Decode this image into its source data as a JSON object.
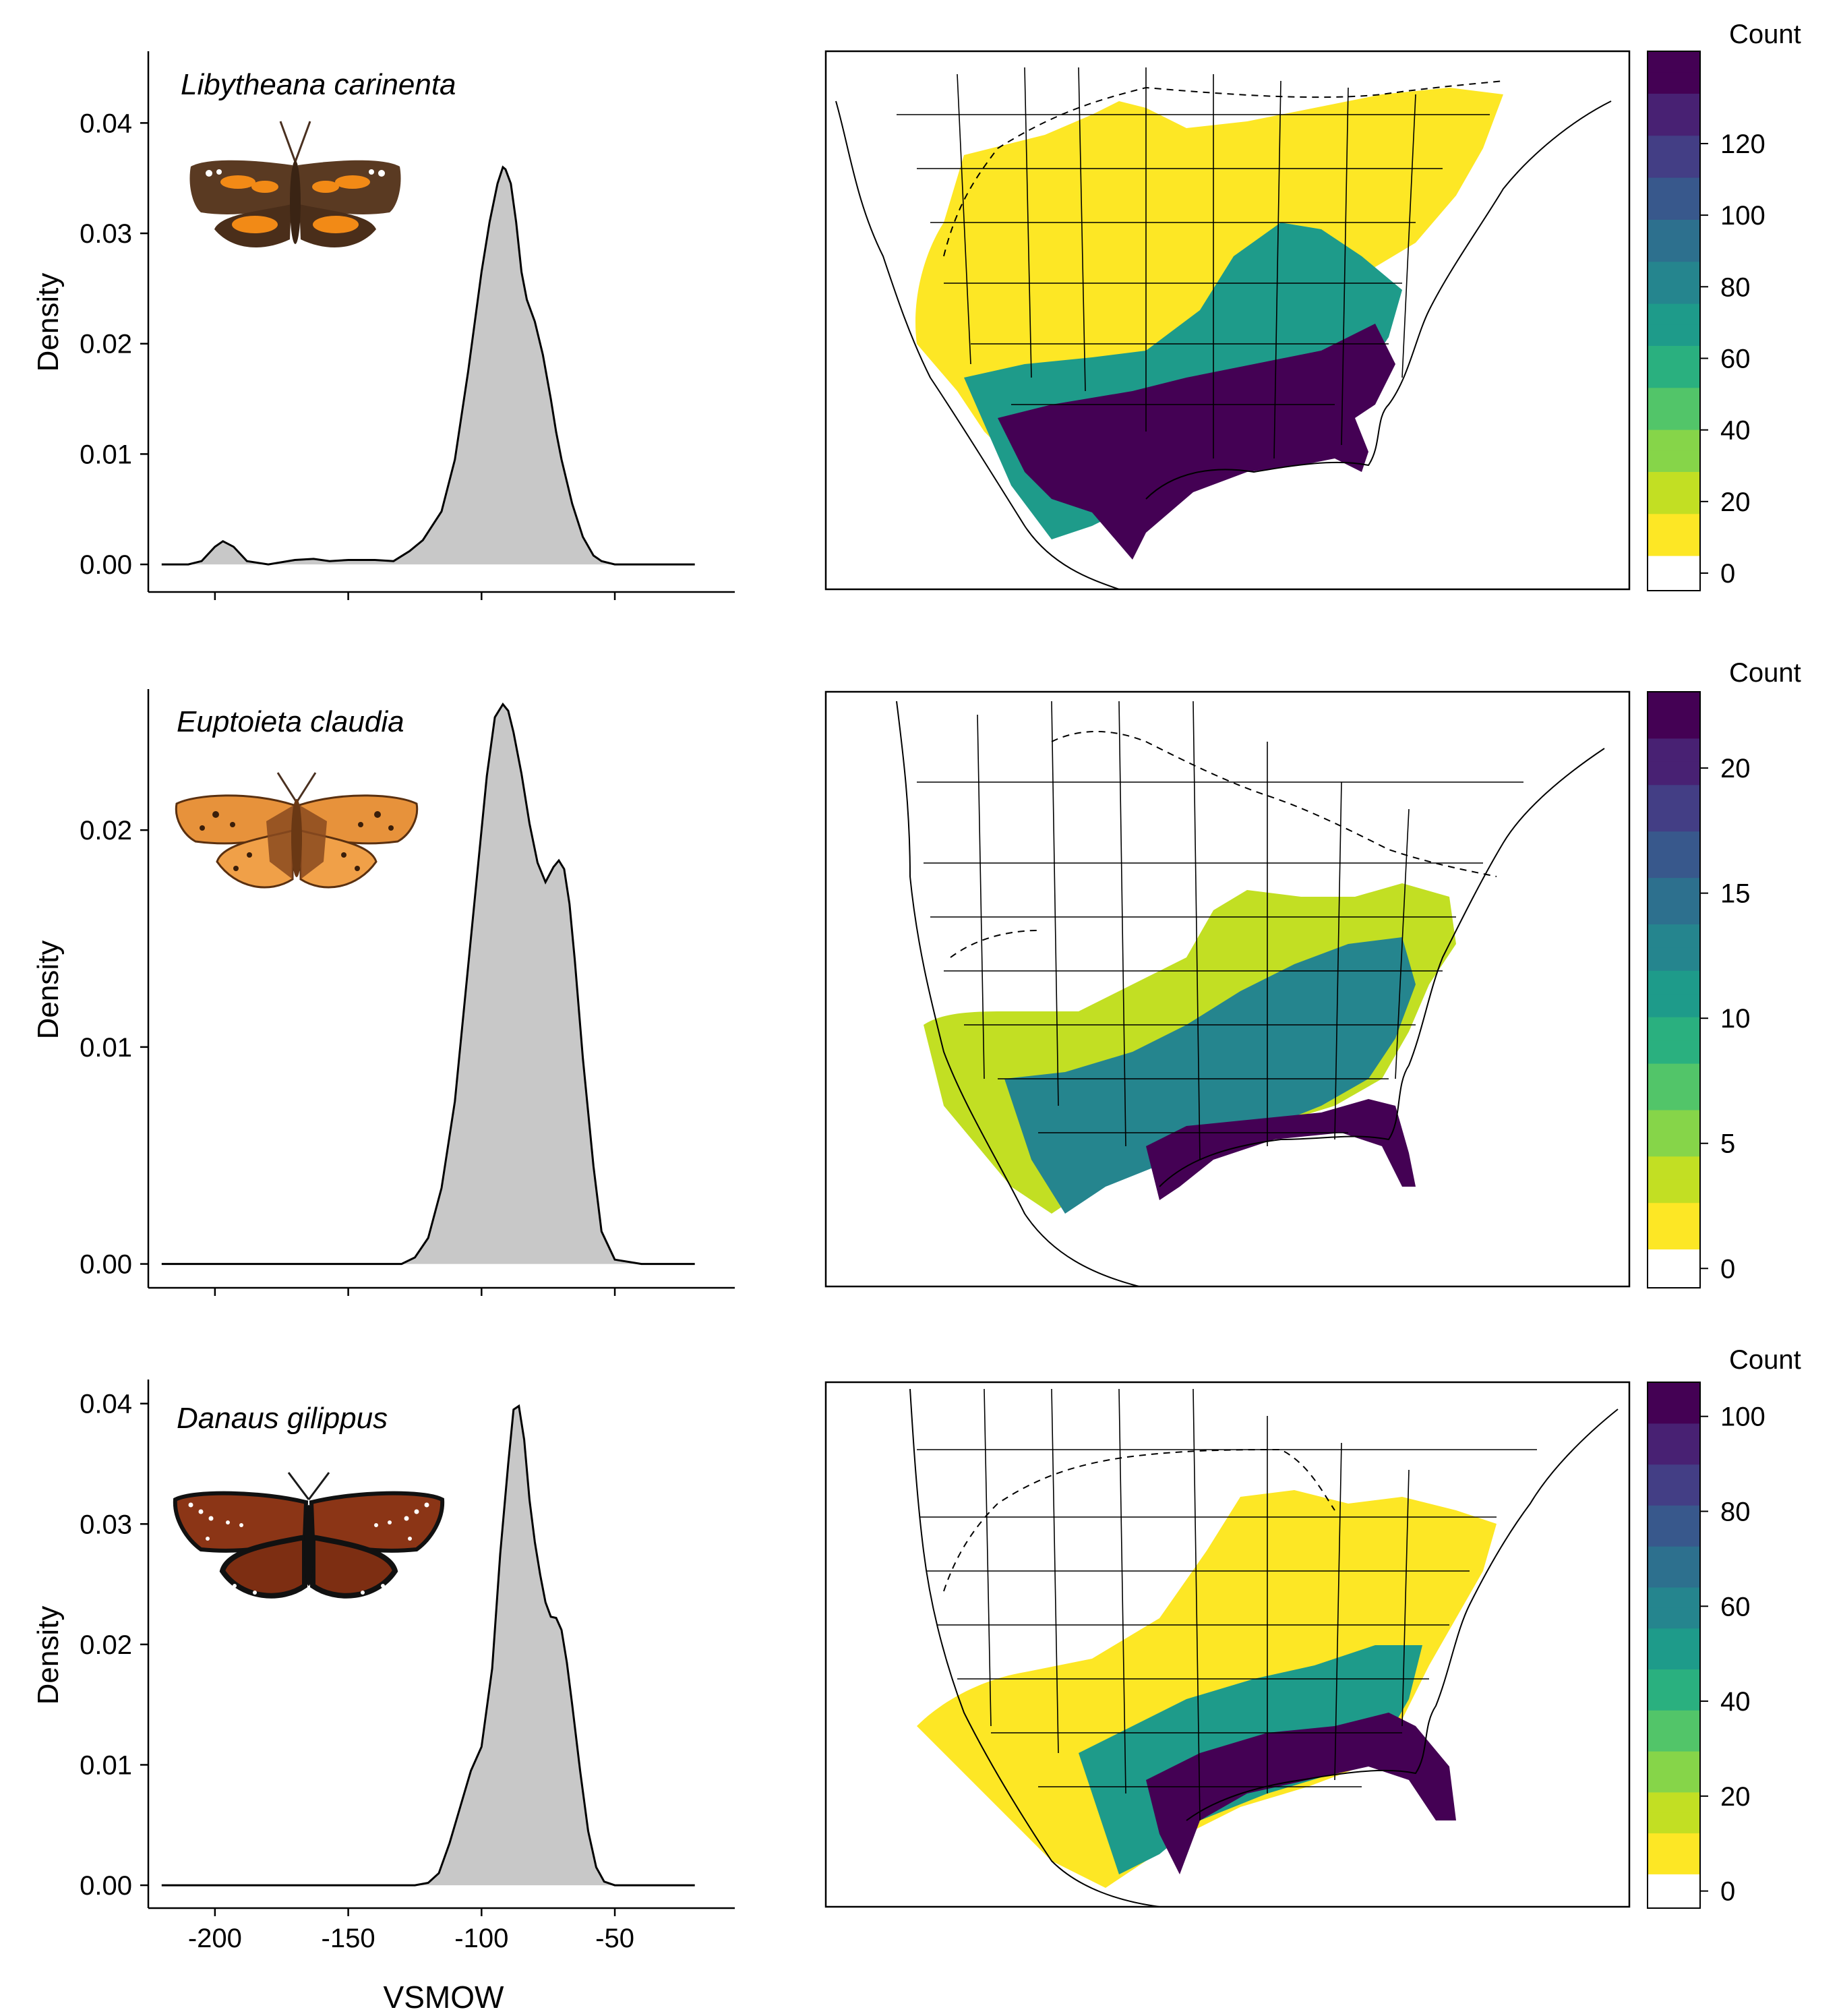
{
  "figure": {
    "common_xlabel": "VSMOW",
    "colorbar_label": "Count"
  },
  "colors": {
    "density_fill": "#c8c8c8",
    "density_line": "#000000",
    "viridis": [
      "#fde725",
      "#c2df23",
      "#86d549",
      "#52c569",
      "#2ab07f",
      "#1e9b8a",
      "#25858e",
      "#2d708e",
      "#38588c",
      "#433e85",
      "#482173",
      "#440154"
    ]
  },
  "chart_data": [
    {
      "type": "area",
      "species": "Libytheana carinenta",
      "icon": "butterfly-orange-brown-icon",
      "xlabel": "",
      "ylabel": "Density",
      "xlim": [
        -225,
        -5
      ],
      "ylim": [
        -0.0025,
        0.0465
      ],
      "xticks": [
        -200,
        -150,
        -100,
        -50
      ],
      "yticks": [
        0.0,
        0.01,
        0.02,
        0.03,
        0.04
      ],
      "ytick_labels": [
        "0.00",
        "0.01",
        "0.02",
        "0.03",
        "0.04"
      ],
      "show_xtick_labels": false,
      "x": [
        -220,
        -210,
        -205,
        -200,
        -197,
        -193,
        -188,
        -180,
        -170,
        -163,
        -157,
        -150,
        -145,
        -140,
        -133,
        -127,
        -122,
        -115,
        -110,
        -105,
        -100,
        -97,
        -94,
        -92,
        -91,
        -89,
        -87,
        -85,
        -83,
        -80,
        -77,
        -74,
        -72,
        -70,
        -66,
        -62,
        -58,
        -55,
        -50,
        -40,
        -30,
        -20
      ],
      "y": [
        0,
        0,
        0.0003,
        0.0016,
        0.0021,
        0.0016,
        0.0003,
        0,
        0.0004,
        0.0005,
        0.0003,
        0.0004,
        0.0004,
        0.0004,
        0.0003,
        0.0012,
        0.0022,
        0.0048,
        0.0095,
        0.0175,
        0.0265,
        0.031,
        0.0345,
        0.036,
        0.0358,
        0.0345,
        0.031,
        0.0265,
        0.024,
        0.022,
        0.019,
        0.015,
        0.012,
        0.0095,
        0.0055,
        0.0025,
        0.0008,
        0.0003,
        0,
        0,
        0,
        0
      ],
      "map": {
        "count_ticks": [
          0,
          20,
          40,
          60,
          80,
          100,
          120
        ],
        "count_max": 136
      }
    },
    {
      "type": "area",
      "species": "Euptoieta claudia",
      "icon": "butterfly-fritillary-icon",
      "xlabel": "",
      "ylabel": "Density",
      "xlim": [
        -225,
        -5
      ],
      "ylim": [
        -0.0011,
        0.0265
      ],
      "xticks": [
        -200,
        -150,
        -100,
        -50
      ],
      "yticks": [
        0.0,
        0.01,
        0.02
      ],
      "ytick_labels": [
        "0.00",
        "0.01",
        "0.02"
      ],
      "show_xtick_labels": false,
      "x": [
        -220,
        -200,
        -180,
        -160,
        -140,
        -130,
        -125,
        -120,
        -115,
        -110,
        -106,
        -102,
        -98,
        -95,
        -92,
        -90,
        -88,
        -85,
        -82,
        -79,
        -76,
        -73,
        -71,
        -69,
        -67,
        -65,
        -62,
        -58,
        -55,
        -50,
        -40,
        -30,
        -20
      ],
      "y": [
        0,
        0,
        0,
        0,
        0,
        0,
        0.0003,
        0.0012,
        0.0035,
        0.0075,
        0.0125,
        0.0175,
        0.0225,
        0.0252,
        0.0258,
        0.0255,
        0.0245,
        0.0226,
        0.0203,
        0.0185,
        0.0176,
        0.0183,
        0.0186,
        0.0182,
        0.0166,
        0.014,
        0.0095,
        0.0045,
        0.0015,
        0.0002,
        0,
        0,
        0
      ],
      "map": {
        "count_ticks": [
          0,
          5,
          10,
          15,
          20
        ],
        "count_max": 21.5
      }
    },
    {
      "type": "area",
      "species": "Danaus gilippus",
      "icon": "butterfly-queen-icon",
      "xlabel": "VSMOW",
      "ylabel": "Density",
      "xlim": [
        -225,
        -5
      ],
      "ylim": [
        -0.0019,
        0.042
      ],
      "xticks": [
        -200,
        -150,
        -100,
        -50
      ],
      "yticks": [
        0.0,
        0.01,
        0.02,
        0.03,
        0.04
      ],
      "ytick_labels": [
        "0.00",
        "0.01",
        "0.02",
        "0.03",
        "0.04"
      ],
      "show_xtick_labels": true,
      "xtick_labels": [
        "-200",
        "-150",
        "-100",
        "-50"
      ],
      "x": [
        -220,
        -200,
        -180,
        -160,
        -140,
        -125,
        -120,
        -116,
        -112,
        -108,
        -104,
        -100,
        -96,
        -93,
        -90,
        -88,
        -86,
        -84,
        -82,
        -80,
        -78,
        -76,
        -74,
        -72,
        -70,
        -68,
        -66,
        -63,
        -60,
        -57,
        -54,
        -50,
        -40,
        -30,
        -20
      ],
      "y": [
        0,
        0,
        0,
        0,
        0,
        0,
        0.0002,
        0.001,
        0.0035,
        0.0065,
        0.0095,
        0.0115,
        0.018,
        0.0275,
        0.035,
        0.0395,
        0.0398,
        0.037,
        0.032,
        0.0285,
        0.0258,
        0.0235,
        0.0223,
        0.0222,
        0.0212,
        0.0185,
        0.015,
        0.0095,
        0.0045,
        0.0015,
        0.0003,
        0,
        0,
        0,
        0
      ],
      "map": {
        "count_ticks": [
          0,
          20,
          40,
          60,
          80,
          100
        ],
        "count_max": 100
      }
    }
  ]
}
